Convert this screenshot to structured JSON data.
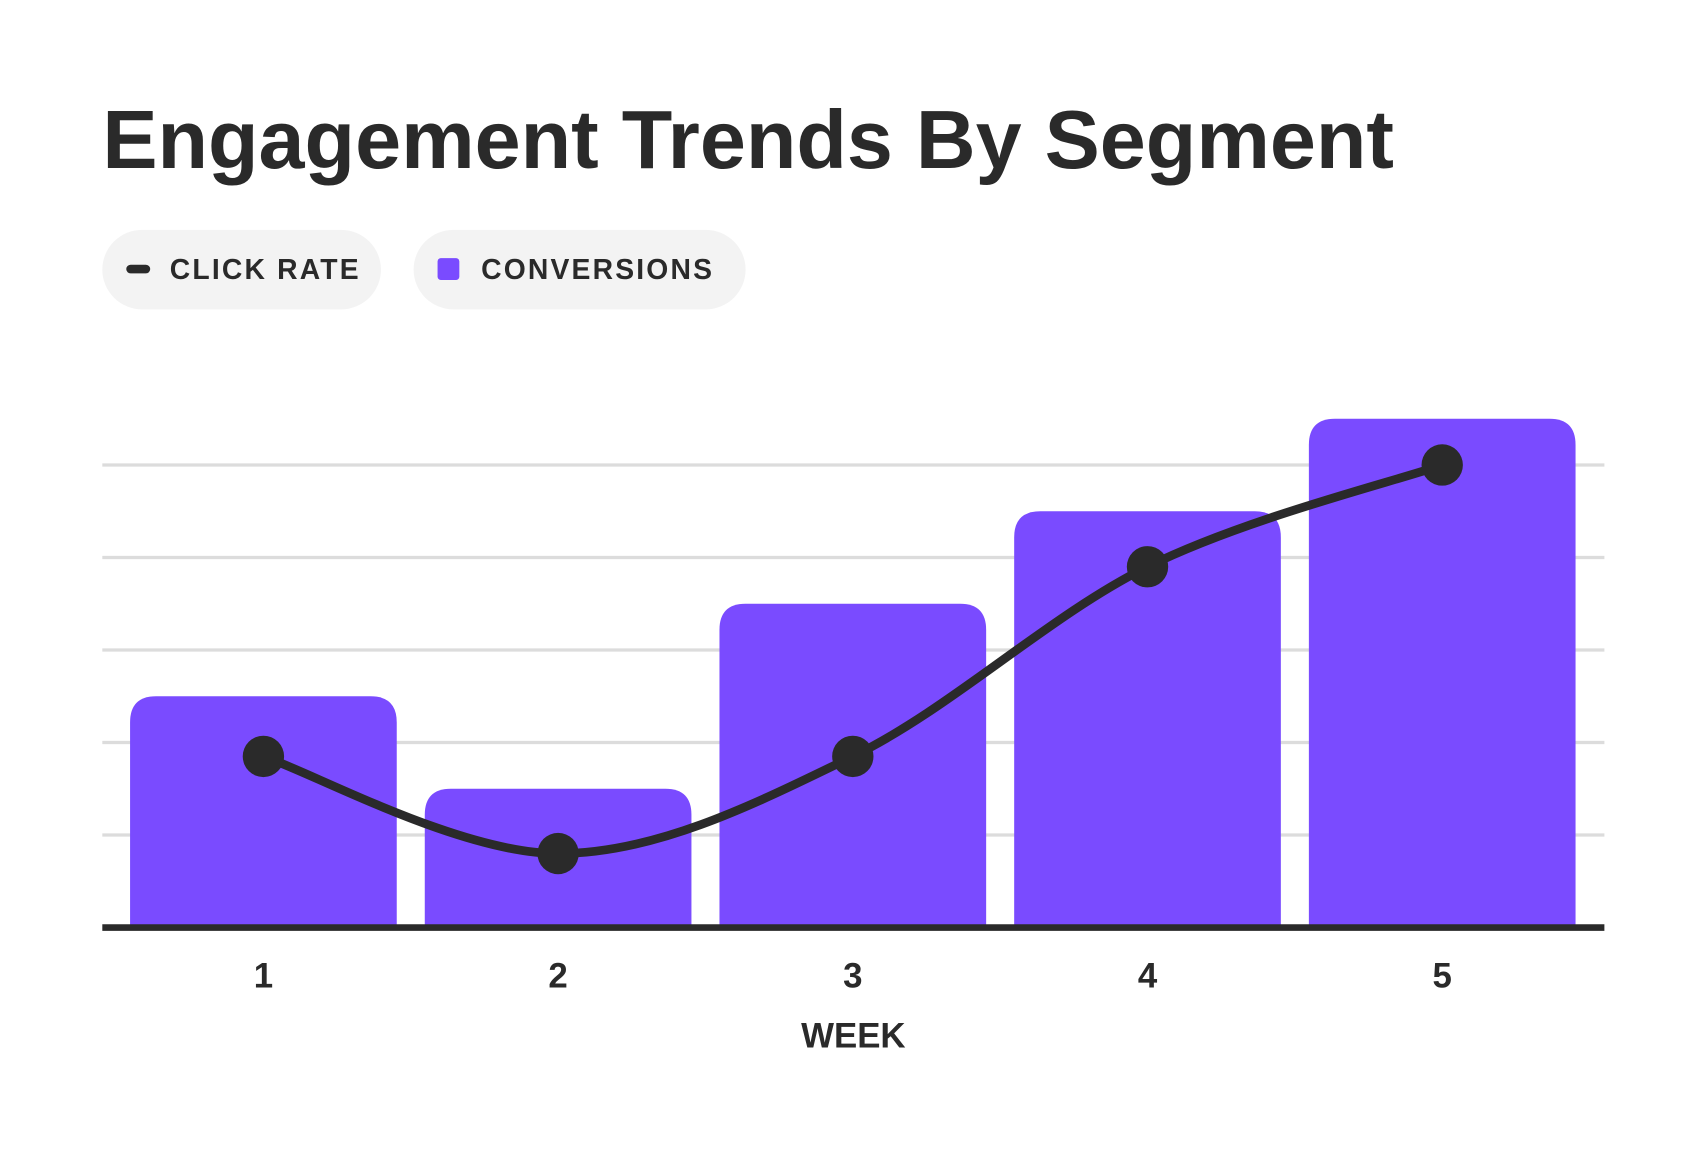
{
  "chart_data": {
    "type": "bar",
    "title": "Engagement Trends By Segment",
    "xlabel": "WEEK",
    "ylabel": "",
    "categories": [
      "1",
      "2",
      "3",
      "4",
      "5"
    ],
    "ylim": [
      0,
      5.5
    ],
    "grid": true,
    "legend_placement": "top-left",
    "series": [
      {
        "name": "CONVERSIONS",
        "type": "bar",
        "color": "#7A4BFF",
        "values": [
          2.5,
          1.5,
          3.5,
          4.5,
          5.5
        ]
      },
      {
        "name": "CLICK RATE",
        "type": "line",
        "color": "#2A2A2A",
        "values": [
          1.85,
          0.8,
          1.85,
          3.9,
          5.0
        ]
      }
    ]
  }
}
